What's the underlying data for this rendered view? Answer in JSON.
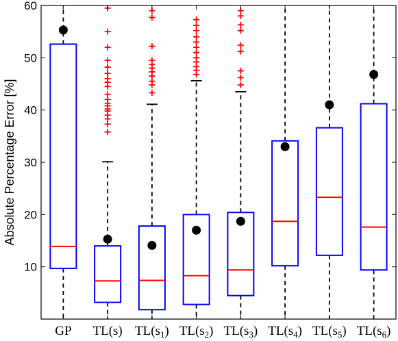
{
  "chart_data": {
    "type": "box",
    "ylabel": "Absolute Percentage Error [%]",
    "ylim": [
      0,
      60
    ],
    "yticks": [
      10,
      20,
      30,
      40,
      50,
      60
    ],
    "grid": false,
    "categories": [
      "GP",
      "TL(s)",
      "TL(s1)",
      "TL(s2)",
      "TL(s3)",
      "TL(s4)",
      "TL(s5)",
      "TL(s6)"
    ],
    "category_labels": [
      {
        "base": "GP",
        "sub": ""
      },
      {
        "base": "TL(s)",
        "sub": ""
      },
      {
        "base": "TL(s",
        "sub": "1",
        "close": ")"
      },
      {
        "base": "TL(s",
        "sub": "2",
        "close": ")"
      },
      {
        "base": "TL(s",
        "sub": "3",
        "close": ")"
      },
      {
        "base": "TL(s",
        "sub": "4",
        "close": ")"
      },
      {
        "base": "TL(s",
        "sub": "5",
        "close": ")"
      },
      {
        "base": "TL(s",
        "sub": "6",
        "close": ")"
      }
    ],
    "boxes": [
      {
        "q1": 9.7,
        "median": 13.9,
        "q3": 52.6,
        "whisker_low": -5.0,
        "whisker_high": 60.0,
        "mean": 55.3,
        "outliers": []
      },
      {
        "q1": 3.2,
        "median": 7.3,
        "q3": 14.0,
        "whisker_low": -5.0,
        "whisker_high": 30.1,
        "mean": 15.3,
        "outliers": [
          35.8,
          37.3,
          38.3,
          39.0,
          39.8,
          40.2,
          40.8,
          41.3,
          42.0,
          43.0,
          44.5,
          45.3,
          46.0,
          47.0,
          48.2,
          49.5,
          52.0,
          55.0,
          59.5
        ]
      },
      {
        "q1": 1.8,
        "median": 7.4,
        "q3": 17.8,
        "whisker_low": -5.0,
        "whisker_high": 41.1,
        "mean": 14.1,
        "outliers": [
          43.3,
          44.8,
          45.5,
          46.5,
          47.3,
          48.0,
          48.7,
          49.5,
          52.2,
          57.7,
          59.0
        ]
      },
      {
        "q1": 2.8,
        "median": 8.3,
        "q3": 20.0,
        "whisker_low": -5.0,
        "whisker_high": 45.6,
        "mean": 17.0,
        "outliers": [
          46.8,
          47.6,
          48.3,
          49.2,
          50.0,
          51.0,
          52.0,
          53.0,
          54.0,
          55.2,
          56.2,
          57.3
        ]
      },
      {
        "q1": 4.5,
        "median": 9.4,
        "q3": 20.4,
        "whisker_low": -5.0,
        "whisker_high": 43.5,
        "mean": 18.7,
        "outliers": [
          44.8,
          46.2,
          47.5,
          51.2,
          52.4,
          55.2,
          56.3,
          58.0,
          59.0
        ]
      },
      {
        "q1": 10.2,
        "median": 18.7,
        "q3": 34.1,
        "whisker_low": -5.0,
        "whisker_high": 60.0,
        "mean": 33.0,
        "outliers": []
      },
      {
        "q1": 12.2,
        "median": 23.3,
        "q3": 36.6,
        "whisker_low": -5.0,
        "whisker_high": 60.0,
        "mean": 41.0,
        "outliers": []
      },
      {
        "q1": 9.4,
        "median": 17.6,
        "q3": 41.2,
        "whisker_low": -5.0,
        "whisker_high": 60.0,
        "mean": 46.8,
        "outliers": []
      }
    ],
    "colors": {
      "box": "#0000ff",
      "median": "#ff0000",
      "whisker": "#000000",
      "outlier": "#ff0000",
      "mean": "#000000"
    }
  }
}
